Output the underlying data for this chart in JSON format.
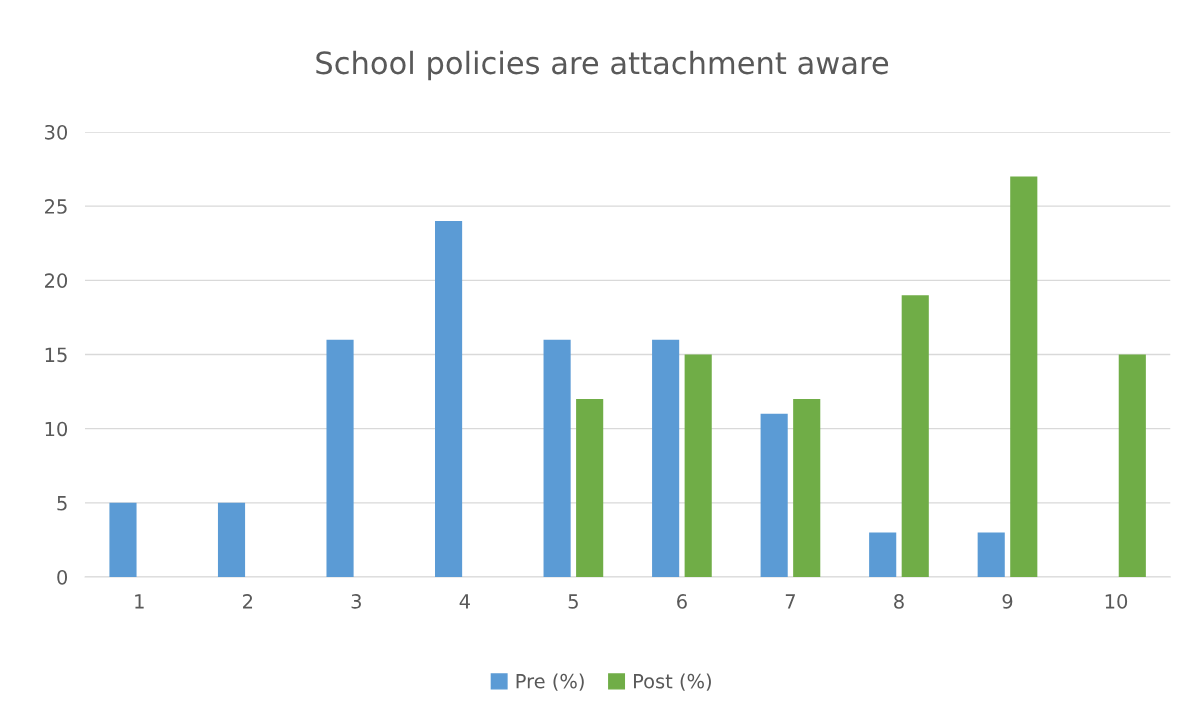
{
  "chart_data": {
    "type": "bar",
    "title": "School policies are attachment aware",
    "categories": [
      "1",
      "2",
      "3",
      "4",
      "5",
      "6",
      "7",
      "8",
      "9",
      "10"
    ],
    "series": [
      {
        "name": "Pre (%)",
        "color": "#5b9bd5",
        "values": [
          5,
          5,
          16,
          24,
          16,
          16,
          11,
          3,
          3,
          0
        ]
      },
      {
        "name": "Post (%)",
        "color": "#70ad47",
        "values": [
          0,
          0,
          0,
          0,
          12,
          15,
          12,
          19,
          27,
          15
        ]
      }
    ],
    "ylim": [
      0,
      30
    ],
    "yticks": [
      0,
      5,
      10,
      15,
      20,
      25,
      30
    ],
    "grid": "y",
    "legend": "bottom"
  }
}
